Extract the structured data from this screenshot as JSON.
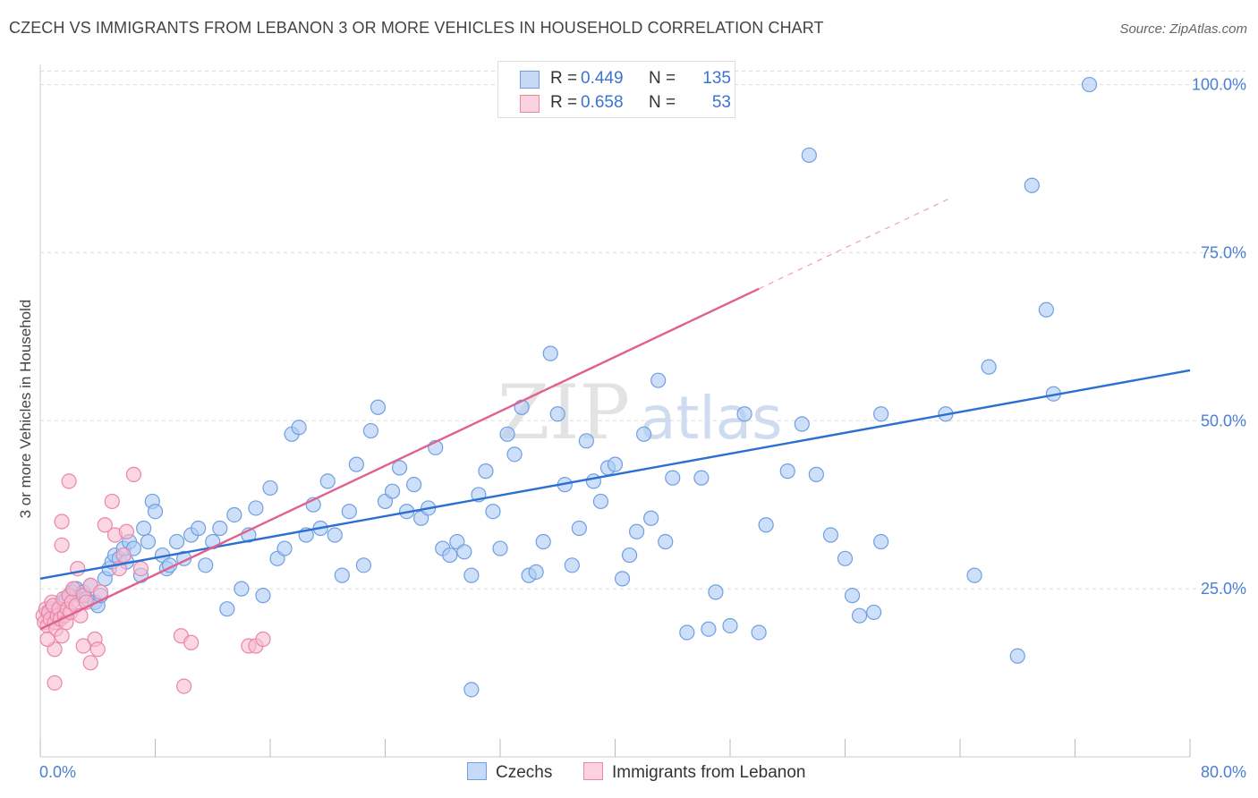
{
  "title": "CZECH VS IMMIGRANTS FROM LEBANON 3 OR MORE VEHICLES IN HOUSEHOLD CORRELATION CHART",
  "source": "Source: ZipAtlas.com",
  "watermark": {
    "zip": "ZIP",
    "atlas": "atlas"
  },
  "legend": {
    "series1": {
      "r_label": "R =",
      "r_value": "0.449",
      "n_label": "N =",
      "n_value": "135"
    },
    "series2": {
      "r_label": "R =",
      "r_value": "0.658",
      "n_label": "N =",
      "n_value": "53"
    }
  },
  "bottom_legend": {
    "series1": "Czechs",
    "series2": "Immigrants from Lebanon"
  },
  "colors": {
    "blue_fill": "#aecbf5",
    "blue_stroke": "#6f9fe0",
    "blue_line": "#2b6fd1",
    "pink_fill": "#f8bcd0",
    "pink_stroke": "#ea86a8",
    "pink_line": "#e0608f",
    "grid": "#dddddd",
    "axis_text": "#4a7fd4"
  },
  "chart_data": {
    "type": "scatter",
    "title": "CZECH VS IMMIGRANTS FROM LEBANON 3 OR MORE VEHICLES IN HOUSEHOLD CORRELATION CHART",
    "xlabel": "",
    "ylabel": "3 or more Vehicles in Household",
    "xlim": [
      0,
      80
    ],
    "ylim": [
      0,
      103
    ],
    "x_tick_labels": [
      "0.0%",
      "80.0%"
    ],
    "y_ticks": [
      25,
      50,
      75,
      100
    ],
    "y_tick_labels": [
      "25.0%",
      "50.0%",
      "75.0%",
      "100.0%"
    ],
    "series": [
      {
        "name": "Czechs",
        "r": 0.449,
        "n": 135,
        "trend": {
          "x0": 0,
          "y0": 26.5,
          "x1": 80,
          "y1": 57.5
        },
        "points": [
          [
            0.5,
            21.5
          ],
          [
            0.8,
            22
          ],
          [
            1,
            21
          ],
          [
            1.2,
            20.5
          ],
          [
            1.5,
            23
          ],
          [
            1.8,
            23.5
          ],
          [
            2,
            24
          ],
          [
            2.2,
            24.5
          ],
          [
            2.5,
            25
          ],
          [
            2.8,
            24
          ],
          [
            3,
            24.5
          ],
          [
            3.2,
            23.5
          ],
          [
            3.5,
            25.5
          ],
          [
            3.8,
            23
          ],
          [
            4,
            22.5
          ],
          [
            4.2,
            24
          ],
          [
            4.5,
            26.5
          ],
          [
            4.8,
            28
          ],
          [
            5,
            29
          ],
          [
            5.2,
            30
          ],
          [
            5.5,
            29.5
          ],
          [
            5.8,
            31
          ],
          [
            6,
            29
          ],
          [
            6.2,
            32
          ],
          [
            6.5,
            31
          ],
          [
            7,
            27
          ],
          [
            7.2,
            34
          ],
          [
            7.5,
            32
          ],
          [
            7.8,
            38
          ],
          [
            8,
            36.5
          ],
          [
            8.5,
            30
          ],
          [
            8.8,
            28
          ],
          [
            9,
            28.5
          ],
          [
            9.5,
            32
          ],
          [
            10,
            29.5
          ],
          [
            10.5,
            33
          ],
          [
            11,
            34
          ],
          [
            11.5,
            28.5
          ],
          [
            12,
            32
          ],
          [
            12.5,
            34
          ],
          [
            13,
            22
          ],
          [
            13.5,
            36
          ],
          [
            14,
            25
          ],
          [
            14.5,
            33
          ],
          [
            15,
            37
          ],
          [
            15.5,
            24
          ],
          [
            16,
            40
          ],
          [
            16.5,
            29.5
          ],
          [
            17,
            31
          ],
          [
            17.5,
            48
          ],
          [
            18,
            49
          ],
          [
            18.5,
            33
          ],
          [
            19,
            37.5
          ],
          [
            19.5,
            34
          ],
          [
            20,
            41
          ],
          [
            20.5,
            33
          ],
          [
            21,
            27
          ],
          [
            21.5,
            36.5
          ],
          [
            22,
            43.5
          ],
          [
            22.5,
            28.5
          ],
          [
            23,
            48.5
          ],
          [
            23.5,
            52
          ],
          [
            24,
            38
          ],
          [
            24.5,
            39.5
          ],
          [
            25,
            43
          ],
          [
            25.5,
            36.5
          ],
          [
            26,
            40.5
          ],
          [
            26.5,
            35.5
          ],
          [
            27,
            37
          ],
          [
            27.5,
            46
          ],
          [
            28,
            31
          ],
          [
            28.5,
            30
          ],
          [
            29,
            32
          ],
          [
            29.5,
            30.5
          ],
          [
            30,
            27
          ],
          [
            30.5,
            39
          ],
          [
            31,
            42.5
          ],
          [
            31.5,
            36.5
          ],
          [
            32,
            31
          ],
          [
            32.5,
            48
          ],
          [
            33,
            45
          ],
          [
            33.5,
            52
          ],
          [
            34,
            27
          ],
          [
            34.5,
            27.5
          ],
          [
            35,
            32
          ],
          [
            35.5,
            60
          ],
          [
            36,
            51
          ],
          [
            36.5,
            40.5
          ],
          [
            37,
            28.5
          ],
          [
            37.5,
            34
          ],
          [
            38,
            47
          ],
          [
            38.5,
            41
          ],
          [
            39,
            38
          ],
          [
            39.5,
            43
          ],
          [
            40,
            43.5
          ],
          [
            40.5,
            26.5
          ],
          [
            41,
            30
          ],
          [
            41.5,
            33.5
          ],
          [
            42,
            48
          ],
          [
            42.5,
            35.5
          ],
          [
            43,
            56
          ],
          [
            43.5,
            32
          ],
          [
            44,
            41.5
          ],
          [
            45,
            18.5
          ],
          [
            46,
            41.5
          ],
          [
            46.5,
            19
          ],
          [
            47,
            24.5
          ],
          [
            48,
            19.5
          ],
          [
            49,
            51
          ],
          [
            50,
            18.5
          ],
          [
            50.5,
            34.5
          ],
          [
            52,
            42.5
          ],
          [
            53,
            49.5
          ],
          [
            53.5,
            89.5
          ],
          [
            54,
            42
          ],
          [
            55,
            33
          ],
          [
            56,
            29.5
          ],
          [
            56.5,
            24
          ],
          [
            57,
            21
          ],
          [
            58,
            21.5
          ],
          [
            58.5,
            51
          ],
          [
            58.5,
            32
          ],
          [
            63,
            51
          ],
          [
            65,
            27
          ],
          [
            66,
            58
          ],
          [
            68,
            15
          ],
          [
            69,
            85
          ],
          [
            70,
            66.5
          ],
          [
            70.5,
            54
          ],
          [
            73,
            100
          ],
          [
            30,
            10
          ]
        ]
      },
      {
        "name": "Immigrants from Lebanon",
        "r": 0.658,
        "n": 53,
        "trend": {
          "x0": 0,
          "y0": 19,
          "x1": 80,
          "y1": 100
        },
        "trend_solid_until_x": 50,
        "points": [
          [
            0.2,
            21
          ],
          [
            0.3,
            20
          ],
          [
            0.4,
            22
          ],
          [
            0.5,
            19.5
          ],
          [
            0.6,
            21.5
          ],
          [
            0.7,
            20.5
          ],
          [
            0.8,
            23
          ],
          [
            0.9,
            22.5
          ],
          [
            1,
            20
          ],
          [
            1.1,
            19
          ],
          [
            1.2,
            21
          ],
          [
            1.3,
            22
          ],
          [
            1.4,
            20.5
          ],
          [
            1.5,
            18
          ],
          [
            1.6,
            23.5
          ],
          [
            1.7,
            21
          ],
          [
            1.8,
            20
          ],
          [
            1.9,
            22
          ],
          [
            2,
            24
          ],
          [
            2.1,
            21.5
          ],
          [
            2.2,
            23
          ],
          [
            2.3,
            25
          ],
          [
            2.5,
            22.5
          ],
          [
            2.6,
            28
          ],
          [
            2.8,
            21
          ],
          [
            3,
            24
          ],
          [
            3.2,
            23
          ],
          [
            3.5,
            25.5
          ],
          [
            3.8,
            17.5
          ],
          [
            4,
            16
          ],
          [
            1.5,
            35
          ],
          [
            2,
            41
          ],
          [
            1.5,
            31.5
          ],
          [
            3,
            16.5
          ],
          [
            3.5,
            14
          ],
          [
            4.2,
            24.5
          ],
          [
            4.5,
            34.5
          ],
          [
            5,
            38
          ],
          [
            5.2,
            33
          ],
          [
            5.5,
            28
          ],
          [
            5.8,
            30
          ],
          [
            6,
            33.5
          ],
          [
            6.5,
            42
          ],
          [
            1,
            16
          ],
          [
            1,
            11
          ],
          [
            0.5,
            17.5
          ],
          [
            7,
            28
          ],
          [
            9.8,
            18
          ],
          [
            10,
            10.5
          ],
          [
            10.5,
            17
          ],
          [
            14.5,
            16.5
          ],
          [
            15,
            16.5
          ],
          [
            15.5,
            17.5
          ]
        ]
      }
    ]
  }
}
